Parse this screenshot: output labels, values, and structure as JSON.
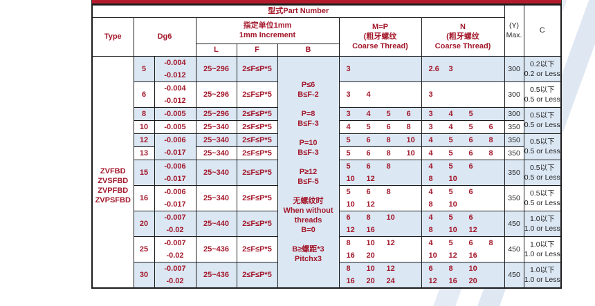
{
  "header": {
    "part_number": "型式Part Number",
    "type": "Type",
    "dg6": "Dg6",
    "increment_cn": "指定单位1mm",
    "increment_en": "1mm Increment",
    "L": "L",
    "F": "F",
    "B": "B",
    "m_title": "M=P",
    "m_cn": "(粗牙螺纹",
    "m_en": "Coarse Thread)",
    "n_title": "N",
    "n_cn": "(粗牙螺纹",
    "n_en": "Coarse Thread)",
    "y_title": "(Y)",
    "y_sub": "Max.",
    "c_title": "C"
  },
  "types": [
    "ZVFBD",
    "ZVSFBD",
    "ZVPFBD",
    "ZVPSFBD"
  ],
  "b_rules": [
    "P≤6",
    "B≤F-2",
    "",
    "P=8",
    "B≤F-3",
    "",
    "P=10",
    "B≤F-3",
    "",
    "P≥12",
    "B≤F-5",
    "",
    "无螺纹时",
    "When without",
    "threads",
    "B=0",
    "",
    "B≥螺距*3",
    "Pitchx3"
  ],
  "colors": {
    "text": "#a3182b",
    "row_blue": "#dbe7f3",
    "banner": "#b31b2c"
  },
  "rows": [
    {
      "d": "5",
      "tol": [
        "-0.004",
        "-0.012"
      ],
      "L": "25~296",
      "F": "2≤F≤P*5",
      "M": [
        [
          "3"
        ]
      ],
      "N": [
        [
          "2.6",
          "3"
        ]
      ],
      "Y": "300",
      "C": [
        "0.2以下",
        "0.2 or Less"
      ]
    },
    {
      "d": "6",
      "tol": [
        "-0.004",
        "-0.012"
      ],
      "L": "25~296",
      "F": "2≤F≤P*5",
      "M": [
        [
          "3",
          "4"
        ]
      ],
      "N": [
        [
          "3"
        ]
      ],
      "Y": "300",
      "C": [
        "0.5以下",
        "0.5 or Less"
      ]
    },
    {
      "d": "8",
      "tol": [
        "-0.005"
      ],
      "L": "25~296",
      "F": "2≤F≤P*5",
      "M": [
        [
          "3",
          "4",
          "5",
          "6"
        ]
      ],
      "N": [
        [
          "3",
          "4",
          "5"
        ]
      ],
      "Y": "300",
      "C": [
        "0.5以下",
        "0.5 or Less"
      ]
    },
    {
      "d": "10",
      "tol": [
        "-0.005"
      ],
      "L": "25~340",
      "F": "2≤F≤P*5",
      "M": [
        [
          "4",
          "5",
          "6",
          "8"
        ]
      ],
      "N": [
        [
          "3",
          "4",
          "5",
          "6"
        ]
      ],
      "Y": "350"
    },
    {
      "d": "12",
      "tol": [
        "-0.006",
        "-0.017"
      ],
      "L": "25~340",
      "F": "2≤F≤P*5",
      "M": [
        [
          "5",
          "6",
          "8",
          "10"
        ]
      ],
      "N": [
        [
          "4",
          "5",
          "6",
          "8"
        ]
      ],
      "Y": "350",
      "C": [
        "0.5以下",
        "0.5 or Less"
      ]
    },
    {
      "d": "13",
      "L": "25~340",
      "F": "2≤F≤P*5",
      "M": [
        [
          "5",
          "6",
          "8",
          "10"
        ]
      ],
      "N": [
        [
          "4",
          "5",
          "6",
          "8"
        ]
      ],
      "Y": "350"
    },
    {
      "d": "15",
      "tol": [
        "-0.006",
        "-0.017"
      ],
      "L": "25~340",
      "F": "2≤F≤P*5",
      "M": [
        [
          "5",
          "6",
          "8"
        ],
        [
          "10",
          "12"
        ]
      ],
      "N": [
        [
          "4",
          "5",
          "6"
        ],
        [
          "8",
          "10"
        ]
      ],
      "Y": "350",
      "C": [
        "0.5以下",
        "0.5 or Less"
      ]
    },
    {
      "d": "16",
      "tol": [
        "-0.006",
        "-0.017"
      ],
      "L": "25~340",
      "F": "2≤F≤P*5",
      "M": [
        [
          "5",
          "6",
          "8"
        ],
        [
          "10",
          "12"
        ]
      ],
      "N": [
        [
          "4",
          "5",
          "6"
        ],
        [
          "8",
          "10"
        ]
      ],
      "Y": "350",
      "C": [
        "0.5以下",
        "0.5 or Less"
      ]
    },
    {
      "d": "20",
      "tol": [
        "-0.007",
        "-0.02"
      ],
      "L": "25~440",
      "F": "2≤F≤P*5",
      "M": [
        [
          "6",
          "8",
          "10"
        ],
        [
          "12",
          "16"
        ]
      ],
      "N": [
        [
          "4",
          "5",
          "6"
        ],
        [
          "8",
          "10",
          "12"
        ]
      ],
      "Y": "450",
      "C": [
        "1.0以下",
        "1.0 or Less"
      ]
    },
    {
      "d": "25",
      "tol": [
        "-0.007",
        "-0.02"
      ],
      "L": "25~436",
      "F": "2≤F≤P*5",
      "M": [
        [
          "8",
          "10",
          "12"
        ],
        [
          "16",
          "20"
        ]
      ],
      "N": [
        [
          "4",
          "5",
          "6",
          "8"
        ],
        [
          "10",
          "12",
          "16"
        ]
      ],
      "Y": "450",
      "C": [
        "1.0以下",
        "1.0 or Less"
      ]
    },
    {
      "d": "30",
      "tol": [
        "-0.007",
        "-0.02"
      ],
      "L": "25~436",
      "F": "2≤F≤P*5",
      "M": [
        [
          "8",
          "10",
          "12"
        ],
        [
          "16",
          "20",
          "24"
        ]
      ],
      "N": [
        [
          "6",
          "8",
          "10"
        ],
        [
          "12",
          "16",
          "20"
        ]
      ],
      "Y": "450",
      "C": [
        "1.0以下",
        "1.0 or Less"
      ]
    }
  ]
}
